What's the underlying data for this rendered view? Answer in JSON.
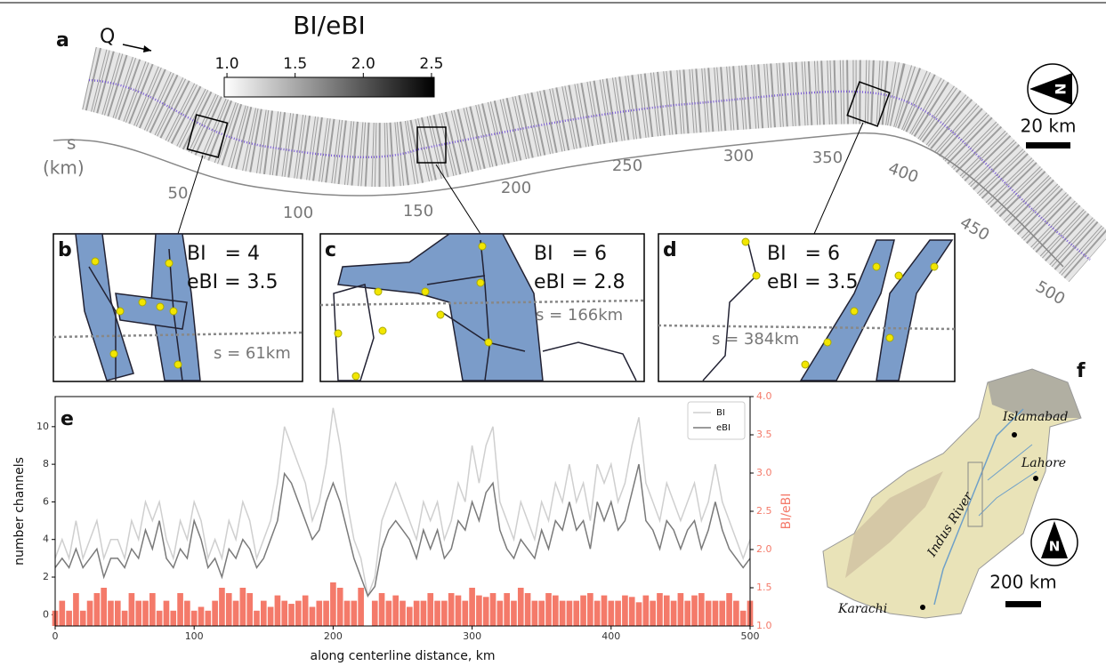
{
  "panel_a": {
    "label": "a",
    "flow": "Q",
    "s_label": "s",
    "s_unit": "(km)",
    "s_ticks": [
      50,
      100,
      150,
      200,
      250,
      300,
      350,
      400,
      450,
      500
    ],
    "scale_bar": "20 km",
    "compass": "N",
    "colorbar": {
      "title": "BI/eBI",
      "lim": [
        0.98,
        2.52
      ],
      "ticks": [
        {
          "value": 1.0,
          "label": "1.0"
        },
        {
          "value": 1.5,
          "label": "1.5"
        },
        {
          "value": 2.0,
          "label": "2.0"
        },
        {
          "value": 2.5,
          "label": "2.5"
        }
      ]
    }
  },
  "insets": [
    {
      "label": "b",
      "bi": "BI   = 4",
      "ebi": "eBI = 3.5",
      "s": "s = 61km"
    },
    {
      "label": "c",
      "bi": "BI   = 6",
      "ebi": "eBI = 2.8",
      "s": "s = 166km"
    },
    {
      "label": "d",
      "bi": "BI   = 6",
      "ebi": "eBI = 3.5",
      "s": "s = 384km"
    }
  ],
  "panel_f": {
    "label": "f",
    "cities": [
      "Islamabad",
      "Lahore",
      "Karachi"
    ],
    "river": "Indus  River",
    "scale_bar": "200 km",
    "compass": "N"
  },
  "chart_data": {
    "type": "line",
    "panel_label": "e",
    "ylabel": "number channels",
    "y2label": "BI/eBI",
    "xlabel": "along centerline distance, km",
    "legend": "upper right",
    "xlim": [
      0,
      500
    ],
    "xticks": [
      0,
      100,
      200,
      300,
      400,
      500
    ],
    "ylim": [
      -0.6,
      11.6
    ],
    "yticks": [
      0,
      2,
      4,
      6,
      8,
      10
    ],
    "y2lim": [
      1.0,
      4.0
    ],
    "y2ticks": [
      {
        "value": 1.0,
        "label": "1.0"
      },
      {
        "value": 1.5,
        "label": "1.5"
      },
      {
        "value": 2.0,
        "label": "2.0"
      },
      {
        "value": 2.5,
        "label": "2.5"
      },
      {
        "value": 3.0,
        "label": "3.0"
      },
      {
        "value": 3.5,
        "label": "3.5"
      },
      {
        "value": 4.0,
        "label": "4.0"
      }
    ],
    "x": [
      0,
      5,
      10,
      15,
      20,
      25,
      30,
      35,
      40,
      45,
      50,
      55,
      60,
      65,
      70,
      75,
      80,
      85,
      90,
      95,
      100,
      105,
      110,
      115,
      120,
      125,
      130,
      135,
      140,
      145,
      150,
      155,
      160,
      165,
      170,
      175,
      180,
      185,
      190,
      195,
      200,
      205,
      210,
      215,
      220,
      225,
      230,
      235,
      240,
      245,
      250,
      255,
      260,
      265,
      270,
      275,
      280,
      285,
      290,
      295,
      300,
      305,
      310,
      315,
      320,
      325,
      330,
      335,
      340,
      345,
      350,
      355,
      360,
      365,
      370,
      375,
      380,
      385,
      390,
      395,
      400,
      405,
      410,
      415,
      420,
      425,
      430,
      435,
      440,
      445,
      450,
      455,
      460,
      465,
      470,
      475,
      480,
      485,
      490,
      495,
      500
    ],
    "series": [
      {
        "type": "bar",
        "axis": "y2",
        "color": "#f47a6a",
        "values": [
          1.2,
          1.33,
          1.2,
          1.43,
          1.2,
          1.33,
          1.43,
          1.5,
          1.33,
          1.33,
          1.2,
          1.43,
          1.33,
          1.33,
          1.43,
          1.2,
          1.33,
          1.2,
          1.43,
          1.33,
          1.2,
          1.25,
          1.2,
          1.33,
          1.5,
          1.43,
          1.33,
          1.5,
          1.43,
          1.2,
          1.33,
          1.25,
          1.4,
          1.33,
          1.29,
          1.33,
          1.4,
          1.25,
          1.33,
          1.33,
          1.57,
          1.5,
          1.33,
          1.33,
          1.5,
          1.0,
          1.33,
          1.43,
          1.33,
          1.4,
          1.33,
          1.25,
          1.33,
          1.33,
          1.43,
          1.33,
          1.33,
          1.43,
          1.4,
          1.33,
          1.5,
          1.4,
          1.38,
          1.43,
          1.33,
          1.43,
          1.33,
          1.5,
          1.43,
          1.33,
          1.33,
          1.43,
          1.4,
          1.33,
          1.33,
          1.33,
          1.4,
          1.43,
          1.33,
          1.4,
          1.33,
          1.33,
          1.4,
          1.38,
          1.31,
          1.4,
          1.33,
          1.43,
          1.4,
          1.33,
          1.43,
          1.33,
          1.4,
          1.43,
          1.33,
          1.33,
          1.33,
          1.43,
          1.33,
          1.2,
          1.33
        ]
      },
      {
        "type": "line",
        "name": "BI",
        "color": "#cfcfcf",
        "values": [
          3,
          4,
          3,
          5,
          3,
          4,
          5,
          3,
          4,
          4,
          3,
          5,
          4,
          6,
          5,
          6,
          4,
          3,
          5,
          4,
          6,
          5,
          3,
          4,
          3,
          5,
          4,
          6,
          5,
          3,
          4,
          5,
          7,
          10,
          9,
          8,
          7,
          5,
          6,
          8,
          11,
          9,
          6,
          4,
          3,
          1,
          2,
          5,
          6,
          7,
          6,
          5,
          4,
          6,
          5,
          6,
          4,
          5,
          7,
          6,
          9,
          7,
          9,
          10,
          6,
          5,
          4,
          6,
          5,
          4,
          6,
          5,
          7,
          6,
          8,
          6,
          7,
          5,
          8,
          7,
          8,
          6,
          7,
          9,
          10.5,
          7,
          6,
          5,
          7,
          6,
          5,
          6,
          7,
          5,
          6,
          8,
          6,
          5,
          4,
          3,
          4
        ]
      },
      {
        "type": "line",
        "name": "eBI",
        "color": "#7a7a7a",
        "values": [
          2.5,
          3,
          2.5,
          3.5,
          2.5,
          3,
          3.5,
          2,
          3,
          3,
          2.5,
          3.5,
          3,
          4.5,
          3.5,
          5,
          3,
          2.5,
          3.5,
          3,
          5,
          4,
          2.5,
          3,
          2,
          3.5,
          3,
          4,
          3.5,
          2.5,
          3,
          4,
          5,
          7.5,
          7,
          6,
          5,
          4,
          4.5,
          6,
          7,
          6,
          4.5,
          3,
          2,
          1,
          1.5,
          3.5,
          4.5,
          5,
          4.5,
          4,
          3,
          4.5,
          3.5,
          4.5,
          3,
          3.5,
          5,
          4.5,
          6,
          5,
          6.5,
          7,
          4.5,
          3.5,
          3,
          4,
          3.5,
          3,
          4.5,
          3.5,
          5,
          4.5,
          6,
          4.5,
          5,
          3.5,
          6,
          5,
          6,
          4.5,
          5,
          6.5,
          8,
          5,
          4.5,
          3.5,
          5,
          4.5,
          3.5,
          4.5,
          5,
          3.5,
          4.5,
          6,
          4.5,
          3.5,
          3,
          2.5,
          3
        ]
      }
    ]
  }
}
